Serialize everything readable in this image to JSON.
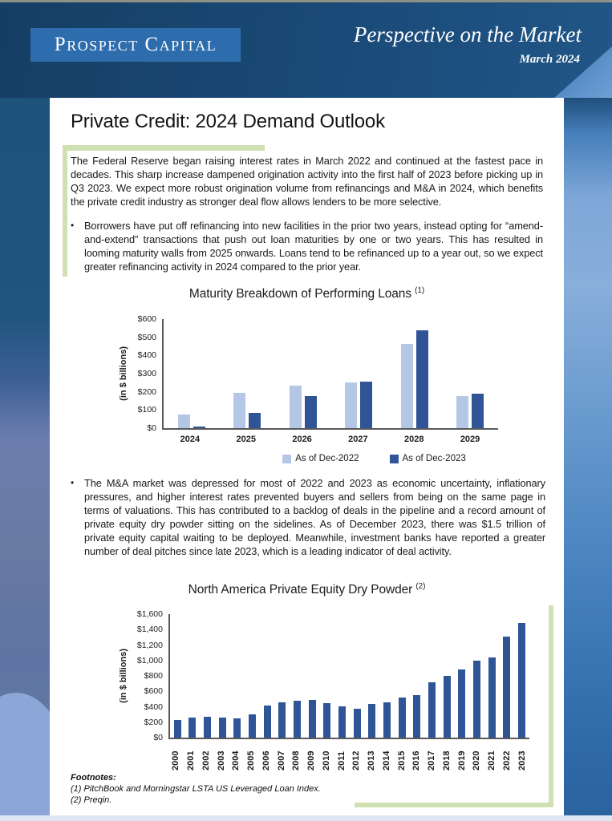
{
  "header": {
    "logo": "Prospect Capital",
    "title": "Perspective on the Market",
    "date": "March 2024"
  },
  "article": {
    "title": "Private Credit: 2024 Demand Outlook",
    "intro": "The Federal Reserve began raising interest rates in March 2022 and continued at the fastest pace in decades. This sharp increase dampened origination activity into the first half of 2023 before picking up in Q3 2023. We expect more robust origination volume from refinancings and M&A in 2024, which benefits the private credit industry as stronger deal flow allows lenders to be more selective.",
    "bullet_glyph": "•",
    "bullets": [
      "Borrowers have put off refinancing into new facilities in the prior two years, instead opting for “amend-and-extend” transactions that push out loan maturities by one or two years. This has resulted in looming maturity walls from 2025 onwards. Loans tend to be refinanced up to a year out, so we expect greater refinancing activity in 2024 compared to the prior year.",
      "The M&A market was depressed for most of 2022 and 2023 as economic uncertainty, inflationary pressures, and higher interest rates prevented buyers and sellers from being on the same page in terms of valuations. This has contributed to a backlog of deals in the pipeline and a record amount of private equity dry powder sitting on the sidelines. As of December 2023, there was $1.5 trillion of private equity capital waiting to be deployed. Meanwhile, investment banks have reported a greater number of deal pitches since late 2023, which is a leading indicator of deal activity."
    ]
  },
  "chart_data": [
    {
      "type": "bar",
      "title": "Maturity Breakdown of Performing Loans",
      "title_superscript": "(1)",
      "categories": [
        "2024",
        "2025",
        "2026",
        "2027",
        "2028",
        "2029"
      ],
      "series": [
        {
          "name": "As of Dec-2022",
          "color": "#b4c7e7",
          "values": [
            75,
            195,
            235,
            250,
            465,
            175
          ]
        },
        {
          "name": "As of Dec-2023",
          "color": "#2f5597",
          "values": [
            10,
            85,
            175,
            255,
            540,
            190
          ]
        }
      ],
      "ylabel": "(in $ billions)",
      "ylim": [
        0,
        600
      ],
      "ytick_step": 100,
      "legend_position": "bottom",
      "grid": false
    },
    {
      "type": "bar",
      "title": "North America Private Equity Dry Powder",
      "title_superscript": "(2)",
      "categories": [
        "2000",
        "2001",
        "2002",
        "2003",
        "2004",
        "2005",
        "2006",
        "2007",
        "2008",
        "2009",
        "2010",
        "2011",
        "2012",
        "2013",
        "2014",
        "2015",
        "2016",
        "2017",
        "2018",
        "2019",
        "2020",
        "2021",
        "2022",
        "2023"
      ],
      "series": [
        {
          "name": "Dry Powder",
          "color": "#2f5597",
          "values": [
            230,
            255,
            270,
            265,
            250,
            300,
            420,
            460,
            480,
            490,
            450,
            405,
            370,
            435,
            455,
            515,
            550,
            720,
            805,
            885,
            995,
            1040,
            1305,
            1485
          ]
        }
      ],
      "ylabel": "(in $ billions)",
      "ylim": [
        0,
        1600
      ],
      "ytick_step": 200,
      "legend_position": "none",
      "grid": false
    }
  ],
  "footnotes": {
    "heading": "Footnotes:",
    "items": [
      "(1) PitchBook and Morningstar LSTA US Leveraged Loan Index.",
      "(2) Preqin."
    ]
  },
  "colors": {
    "accent_green": "#cfe0b2",
    "bar_light_blue": "#b4c7e7",
    "bar_dark_blue": "#2f5597",
    "header_navy": "#1a4a75",
    "logo_box_blue": "#2e6dad",
    "axis_grey": "#595959",
    "bottom_strip": "#dce7f3"
  }
}
